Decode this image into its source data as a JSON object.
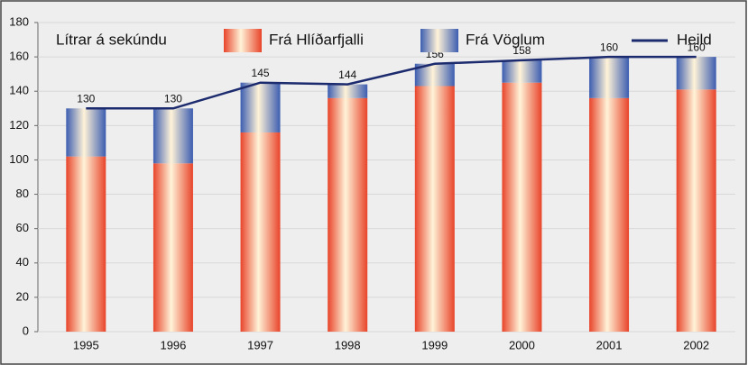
{
  "chart_data": {
    "type": "bar",
    "stacked": true,
    "y_label": "Lítrar á sekúndu",
    "categories": [
      "1995",
      "1996",
      "1997",
      "1998",
      "1999",
      "2000",
      "2001",
      "2002"
    ],
    "series": [
      {
        "name": "Frá Hlíðarfjalli",
        "color": "#e8442a",
        "values": [
          102,
          98,
          116,
          136,
          143,
          145,
          136,
          141
        ]
      },
      {
        "name": "Frá Vöglum",
        "color": "#3c5db0",
        "values": [
          28,
          32,
          29,
          8,
          13,
          13,
          24,
          19
        ]
      },
      {
        "name": "Heild",
        "type": "line",
        "color": "#1c2a6e",
        "values": [
          130,
          130,
          145,
          144,
          156,
          158,
          160,
          160
        ]
      }
    ],
    "ylim": [
      0,
      180
    ],
    "yticks": [
      0,
      20,
      40,
      60,
      80,
      100,
      120,
      140,
      160,
      180
    ],
    "grid": true
  }
}
